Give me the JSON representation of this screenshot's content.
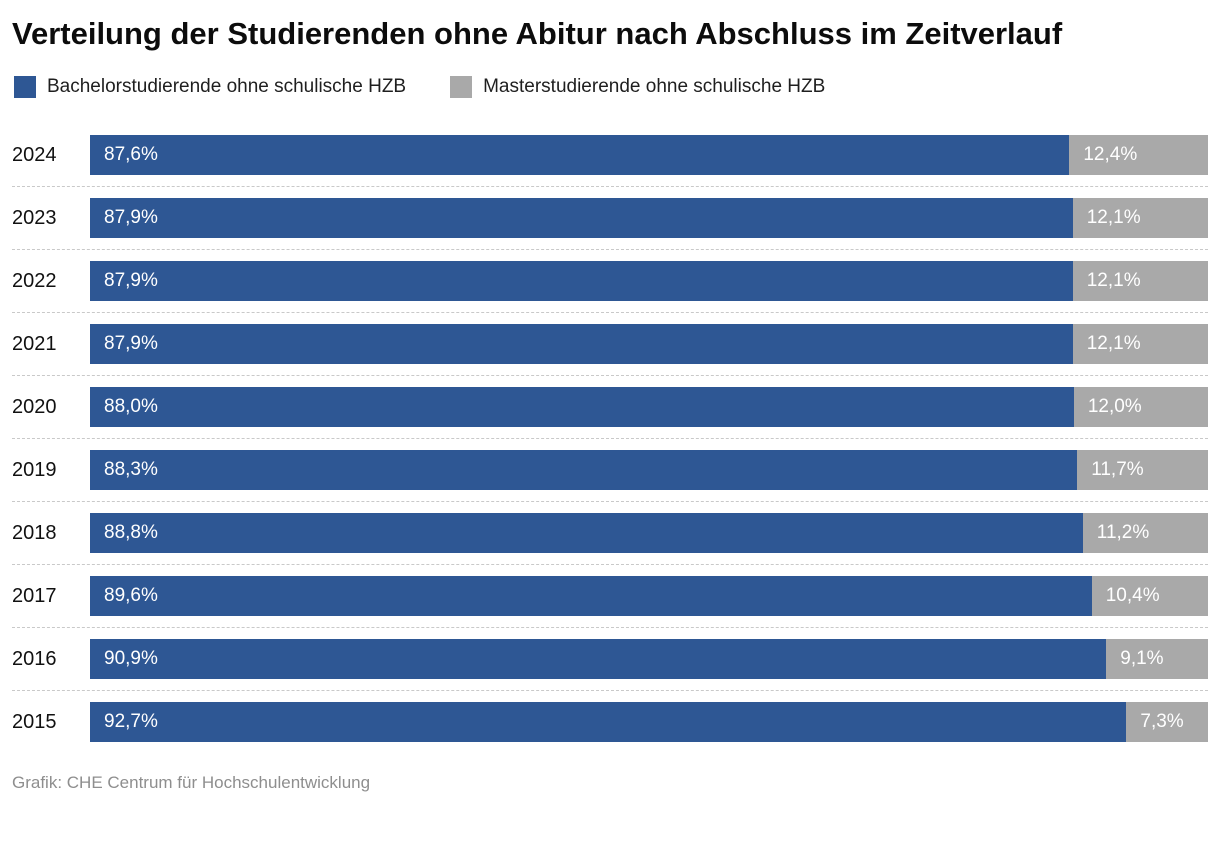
{
  "title": "Verteilung der Studierenden ohne Abitur nach Abschluss im Zeitverlauf",
  "footer": "Grafik: CHE Centrum für Hochschulentwicklung",
  "colors": {
    "bachelor": "#2e5794",
    "master": "#a9a9a9"
  },
  "legend": [
    {
      "label": "Bachelorstudierende ohne schulische HZB",
      "color": "#2e5794"
    },
    {
      "label": "Masterstudierende ohne schulische HZB",
      "color": "#a9a9a9"
    }
  ],
  "chart_data": {
    "type": "bar",
    "orientation": "horizontal",
    "stacked": true,
    "title": "Verteilung der Studierenden ohne Abitur nach Abschluss im Zeitverlauf",
    "xlabel": "",
    "ylabel": "",
    "xlim": [
      0,
      100
    ],
    "grid": false,
    "legend_position": "top",
    "categories": [
      "2024",
      "2023",
      "2022",
      "2021",
      "2020",
      "2019",
      "2018",
      "2017",
      "2016",
      "2015"
    ],
    "series": [
      {
        "name": "Bachelorstudierende ohne schulische HZB",
        "color": "#2e5794",
        "values": [
          87.6,
          87.9,
          87.9,
          87.9,
          88.0,
          88.3,
          88.8,
          89.6,
          90.9,
          92.7
        ],
        "labels": [
          "87,6%",
          "87,9%",
          "87,9%",
          "87,9%",
          "88,0%",
          "88,3%",
          "88,8%",
          "89,6%",
          "90,9%",
          "92,7%"
        ]
      },
      {
        "name": "Masterstudierende ohne schulische HZB",
        "color": "#a9a9a9",
        "values": [
          12.4,
          12.1,
          12.1,
          12.1,
          12.0,
          11.7,
          11.2,
          10.4,
          9.1,
          7.3
        ],
        "labels": [
          "12,4%",
          "12,1%",
          "12,1%",
          "12,1%",
          "12,0%",
          "11,7%",
          "11,2%",
          "10,4%",
          "9,1%",
          "7,3%"
        ]
      }
    ]
  }
}
